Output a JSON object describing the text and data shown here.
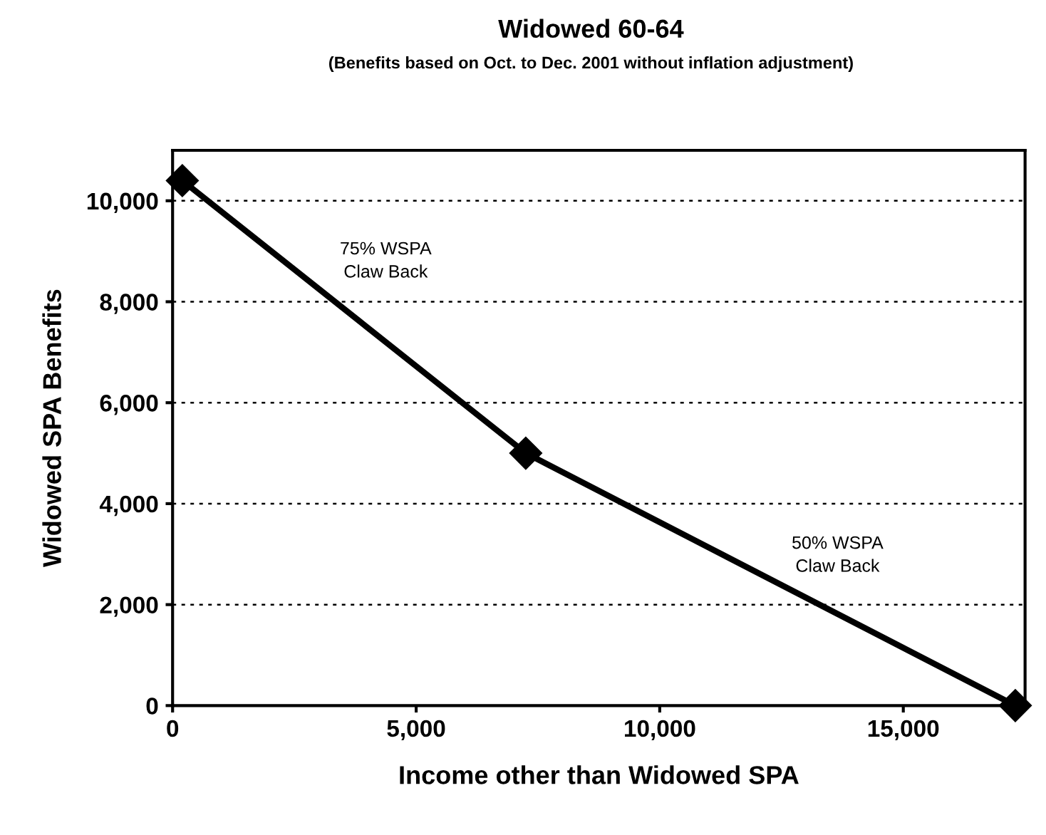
{
  "chart_data": {
    "type": "line",
    "title": "Widowed 60-64",
    "subtitle": "(Benefits based on Oct. to Dec. 2001 without inflation adjustment)",
    "xlabel": "Income other than Widowed SPA",
    "ylabel": "Widowed SPA Benefits",
    "x": [
      200,
      7250,
      17300
    ],
    "series": [
      {
        "color": "#000000",
        "values": [
          10400,
          5000,
          0
        ]
      }
    ],
    "marker": "diamond",
    "line_style": "solid",
    "xlim": [
      0,
      17500
    ],
    "xticks": [
      {
        "value": 0,
        "label": "0"
      },
      {
        "value": 5000,
        "label": "5,000"
      },
      {
        "value": 10000,
        "label": "10,000"
      },
      {
        "value": 15000,
        "label": "15,000"
      }
    ],
    "ylim": [
      0,
      11000
    ],
    "yticks": [
      {
        "value": 0,
        "label": "0"
      },
      {
        "value": 2000,
        "label": "2,000"
      },
      {
        "value": 4000,
        "label": "4,000"
      },
      {
        "value": 6000,
        "label": "6,000"
      },
      {
        "value": 8000,
        "label": "8,000"
      },
      {
        "value": 10000,
        "label": "10,000"
      }
    ],
    "grid": "y",
    "annotations": [
      "75% WSPA\nClaw Back",
      "50% WSPA\nClaw Back"
    ]
  }
}
